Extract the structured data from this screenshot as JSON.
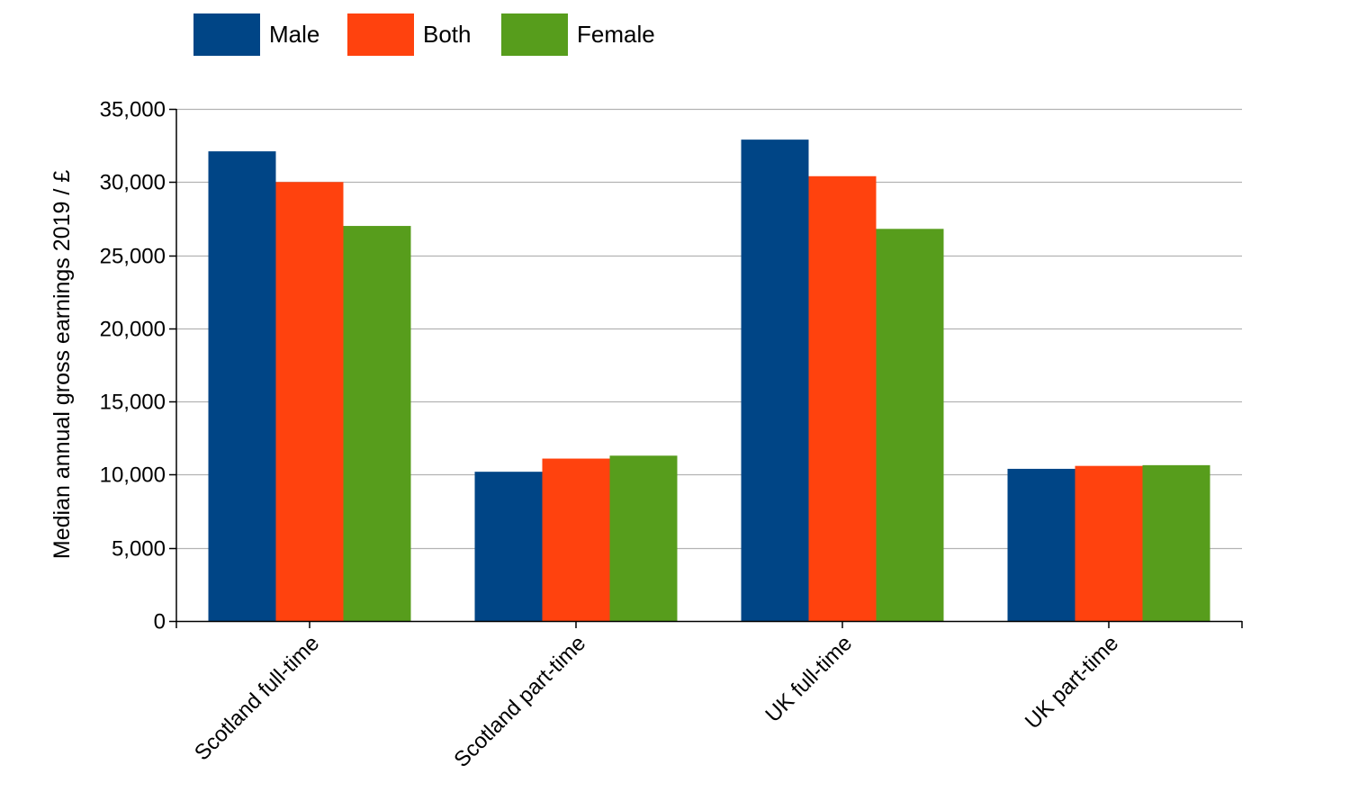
{
  "chart_data": {
    "type": "bar",
    "categories": [
      "Scotland full-time",
      "Scotland part-time",
      "UK full-time",
      "UK part-time"
    ],
    "series": [
      {
        "name": "Male",
        "color": "#004586",
        "values": [
          32100,
          10200,
          32900,
          10400
        ]
      },
      {
        "name": "Both",
        "color": "#ff420e",
        "values": [
          30000,
          11100,
          30400,
          10600
        ]
      },
      {
        "name": "Female",
        "color": "#579d1c",
        "values": [
          27000,
          11300,
          26800,
          10650
        ]
      }
    ],
    "title": "",
    "xlabel": "",
    "ylabel": "Median annual gross earnings 2019 / £",
    "ylim": [
      0,
      35000
    ],
    "yticks": [
      0,
      5000,
      10000,
      15000,
      20000,
      25000,
      30000,
      35000
    ],
    "ytick_labels": [
      "0",
      "5,000",
      "10,000",
      "15,000",
      "20,000",
      "25,000",
      "30,000",
      "35,000"
    ],
    "grid": true,
    "legend_position": "top-left"
  }
}
